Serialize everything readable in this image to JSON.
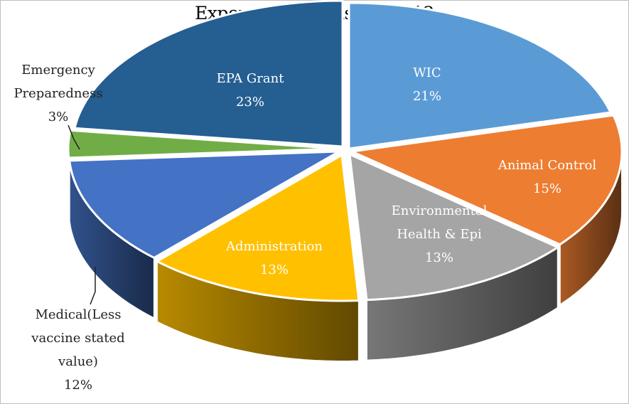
{
  "chart_data": {
    "type": "pie",
    "title": "Expenses By Division, 2012",
    "three_d": true,
    "legend": "none",
    "slices": [
      {
        "name": "WIC",
        "value": 21,
        "label_lines": [
          "WIC"
        ],
        "pct": "21%",
        "color": "#5b9bd5",
        "label_color": "#ffffff"
      },
      {
        "name": "Animal Control",
        "value": 15,
        "label_lines": [
          "Animal Control"
        ],
        "pct": "15%",
        "color": "#ed7d31",
        "label_color": "#ffffff"
      },
      {
        "name": "Environmental Health & Epi",
        "value": 13,
        "label_lines": [
          "Environmental",
          "Health & Epi"
        ],
        "pct": "13%",
        "color": "#a5a5a5",
        "label_color": "#ffffff"
      },
      {
        "name": "Administration",
        "value": 13,
        "label_lines": [
          "Administration"
        ],
        "pct": "13%",
        "color": "#ffc000",
        "label_color": "#ffffff"
      },
      {
        "name": "Medical(Less vaccine stated value)",
        "value": 12,
        "label_lines": [
          "Medical(Less",
          "vaccine stated",
          "value)"
        ],
        "pct": "12%",
        "color": "#4472c4",
        "label_color": "#222222"
      },
      {
        "name": "Emergency Preparedness",
        "value": 3,
        "label_lines": [
          "Emergency",
          "Preparedness"
        ],
        "pct": "3%",
        "color": "#70ad47",
        "label_color": "#222222"
      },
      {
        "name": "EPA Grant",
        "value": 23,
        "label_lines": [
          "EPA Grant"
        ],
        "pct": "23%",
        "color": "#255e91",
        "label_color": "#ffffff"
      }
    ]
  }
}
